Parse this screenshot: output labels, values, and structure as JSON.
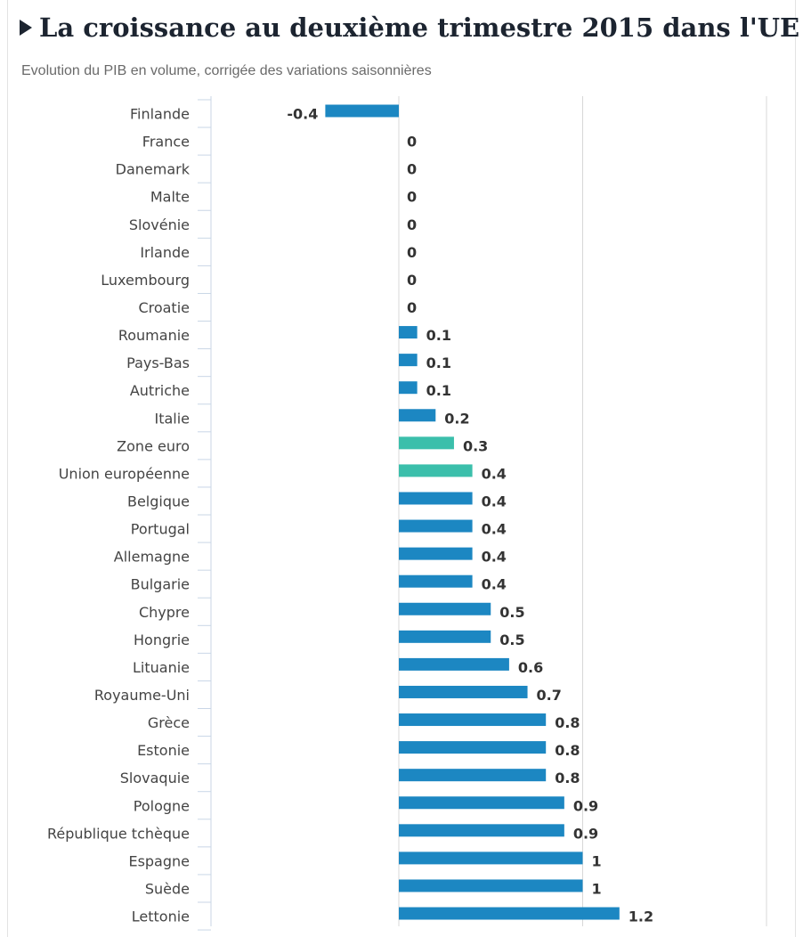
{
  "header": {
    "title": "La croissance au deuxième trimestre 2015 dans l'UE",
    "subtitle": "Evolution du PIB en volume, corrigée des variations saisonnières"
  },
  "colors": {
    "bar": "#1c87c2",
    "highlight": "#3bbfab",
    "grid": "#d8d8d8",
    "axis": "#c9d6e6"
  },
  "chart_data": {
    "type": "bar",
    "orientation": "horizontal",
    "title": "La croissance au deuxième trimestre 2015 dans l'UE",
    "subtitle": "Evolution du PIB en volume, corrigée des variations saisonnières",
    "xlim": [
      -0.4,
      1.6
    ],
    "grid": true,
    "categories": [
      "Finlande",
      "France",
      "Danemark",
      "Malte",
      "Slovénie",
      "Irlande",
      "Luxembourg",
      "Croatie",
      "Roumanie",
      "Pays-Bas",
      "Autriche",
      "Italie",
      "Zone euro",
      "Union européenne",
      "Belgique",
      "Portugal",
      "Allemagne",
      "Bulgarie",
      "Chypre",
      "Hongrie",
      "Lituanie",
      "Royaume-Uni",
      "Grèce",
      "Estonie",
      "Slovaquie",
      "Pologne",
      "République tchèque",
      "Espagne",
      "Suède",
      "Lettonie"
    ],
    "values": [
      -0.4,
      0,
      0,
      0,
      0,
      0,
      0,
      0,
      0.1,
      0.1,
      0.1,
      0.2,
      0.3,
      0.4,
      0.4,
      0.4,
      0.4,
      0.4,
      0.5,
      0.5,
      0.6,
      0.7,
      0.8,
      0.8,
      0.8,
      0.9,
      0.9,
      1,
      1,
      1.2
    ],
    "value_labels": [
      "-0.4",
      "0",
      "0",
      "0",
      "0",
      "0",
      "0",
      "0",
      "0.1",
      "0.1",
      "0.1",
      "0.2",
      "0.3",
      "0.4",
      "0.4",
      "0.4",
      "0.4",
      "0.4",
      "0.5",
      "0.5",
      "0.6",
      "0.7",
      "0.8",
      "0.8",
      "0.8",
      "0.9",
      "0.9",
      "1",
      "1",
      "1.2"
    ],
    "highlighted": [
      "Zone euro",
      "Union européenne"
    ]
  }
}
